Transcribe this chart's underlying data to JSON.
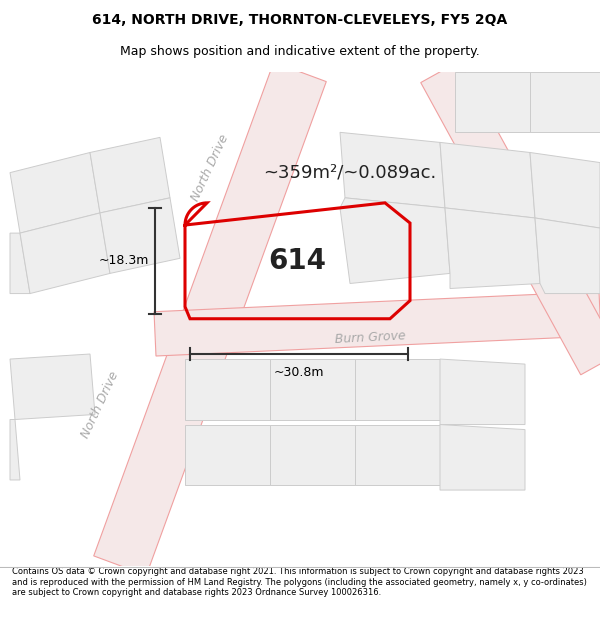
{
  "title": "614, NORTH DRIVE, THORNTON-CLEVELEYS, FY5 2QA",
  "subtitle": "Map shows position and indicative extent of the property.",
  "area_text": "~359m²/~0.089ac.",
  "property_number": "614",
  "dim_width": "~30.8m",
  "dim_height": "~18.3m",
  "footer": "Contains OS data © Crown copyright and database right 2021. This information is subject to Crown copyright and database rights 2023 and is reproduced with the permission of HM Land Registry. The polygons (including the associated geometry, namely x, y co-ordinates) are subject to Crown copyright and database rights 2023 Ordnance Survey 100026316.",
  "map_bg": "#ffffff",
  "road_strip_color": "#f5e8e8",
  "road_line_color": "#f0a0a0",
  "parcel_fill": "#eeeeee",
  "parcel_edge": "#cccccc",
  "property_fill": "none",
  "property_edge": "#dd0000",
  "road_label_color": "#aaaaaa",
  "title_fontsize": 10,
  "subtitle_fontsize": 9
}
